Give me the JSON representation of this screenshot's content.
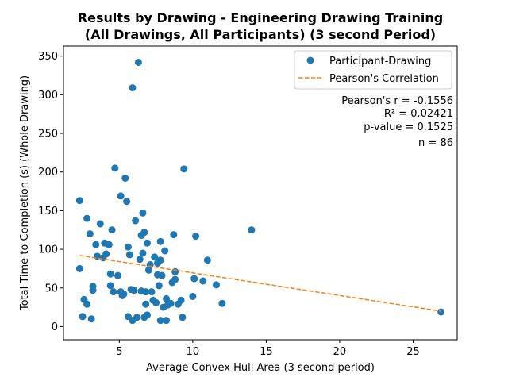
{
  "chart_data": {
    "type": "scatter",
    "title_line1": "Results by Drawing - Engineering Drawing Training",
    "title_line2": "(All Drawings, All Participants) (3 second Period)",
    "xlabel": "Average Convex Hull Area (3 second period)",
    "ylabel": "Total Time to Completion (s) (Whole Drawing)",
    "xlim": [
      1.2,
      28.0
    ],
    "ylim": [
      -17,
      363
    ],
    "xticks": [
      5,
      10,
      15,
      20,
      25
    ],
    "yticks": [
      0,
      50,
      100,
      150,
      200,
      250,
      300,
      350
    ],
    "grid": false,
    "legend_position": "top-right",
    "colors": {
      "scatter": "#1f77b4",
      "line": "#ff7f0e"
    },
    "legend": [
      "Participant-Drawing",
      "Pearson's Correlation"
    ],
    "stats": [
      "Pearson's r = -0.1556",
      "R² = 0.02421",
      "p-value = 0.1525",
      "n = 86"
    ],
    "regression": {
      "x": [
        2.3,
        26.9
      ],
      "y": [
        92,
        20
      ]
    },
    "series": [
      {
        "name": "Participant-Drawing",
        "points": [
          [
            2.3,
            163
          ],
          [
            2.3,
            75
          ],
          [
            2.5,
            13
          ],
          [
            2.6,
            35
          ],
          [
            2.8,
            29
          ],
          [
            2.8,
            140
          ],
          [
            3.0,
            120
          ],
          [
            3.1,
            10
          ],
          [
            3.2,
            52
          ],
          [
            3.2,
            47
          ],
          [
            3.4,
            106
          ],
          [
            3.5,
            91
          ],
          [
            3.7,
            133
          ],
          [
            3.9,
            89
          ],
          [
            4.0,
            108
          ],
          [
            4.1,
            94
          ],
          [
            4.3,
            106
          ],
          [
            4.4,
            68
          ],
          [
            4.4,
            53
          ],
          [
            4.5,
            125
          ],
          [
            4.6,
            45
          ],
          [
            4.7,
            205
          ],
          [
            4.9,
            66
          ],
          [
            5.1,
            169
          ],
          [
            5.1,
            45
          ],
          [
            5.2,
            40
          ],
          [
            5.3,
            42
          ],
          [
            5.4,
            192
          ],
          [
            5.5,
            162
          ],
          [
            5.6,
            13
          ],
          [
            5.6,
            103
          ],
          [
            5.7,
            93
          ],
          [
            5.8,
            48
          ],
          [
            5.9,
            309
          ],
          [
            5.9,
            8
          ],
          [
            6.0,
            47
          ],
          [
            6.1,
            137
          ],
          [
            6.2,
            12
          ],
          [
            6.3,
            342
          ],
          [
            6.4,
            87
          ],
          [
            6.5,
            118
          ],
          [
            6.5,
            46
          ],
          [
            6.6,
            147
          ],
          [
            6.6,
            95
          ],
          [
            6.7,
            122
          ],
          [
            6.7,
            12
          ],
          [
            6.8,
            45
          ],
          [
            6.8,
            29
          ],
          [
            6.9,
            15
          ],
          [
            6.9,
            108
          ],
          [
            7.0,
            73
          ],
          [
            7.1,
            80
          ],
          [
            7.3,
            34
          ],
          [
            7.4,
            90
          ],
          [
            7.5,
            31
          ],
          [
            7.6,
            67
          ],
          [
            7.6,
            82
          ],
          [
            7.7,
            53
          ],
          [
            7.8,
            110
          ],
          [
            7.8,
            86
          ],
          [
            7.8,
            8
          ],
          [
            7.9,
            66
          ],
          [
            8.0,
            25
          ],
          [
            8.1,
            98
          ],
          [
            8.2,
            8
          ],
          [
            8.2,
            36
          ],
          [
            8.3,
            28
          ],
          [
            8.5,
            30
          ],
          [
            8.6,
            57
          ],
          [
            8.7,
            119
          ],
          [
            8.8,
            71
          ],
          [
            8.8,
            61
          ],
          [
            9.0,
            29
          ],
          [
            9.2,
            34
          ],
          [
            9.3,
            12
          ],
          [
            9.4,
            204
          ],
          [
            10.0,
            39
          ],
          [
            10.1,
            62
          ],
          [
            10.2,
            117
          ],
          [
            10.7,
            59
          ],
          [
            11.0,
            86
          ],
          [
            11.6,
            54
          ],
          [
            12.0,
            30
          ],
          [
            14.0,
            125
          ],
          [
            26.9,
            19
          ],
          [
            7.2,
            45
          ]
        ]
      }
    ]
  }
}
